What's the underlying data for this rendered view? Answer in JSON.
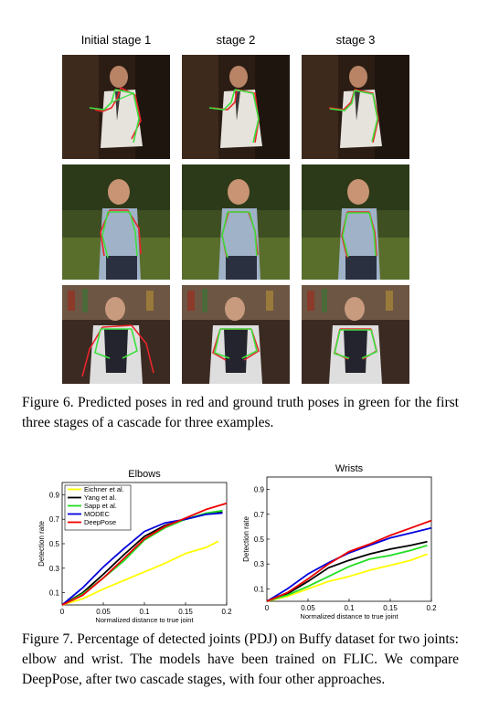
{
  "figure6": {
    "column_titles": [
      "Initial stage 1",
      "stage 2",
      "stage 3"
    ],
    "caption": "Figure 6. Predicted poses in red and ground truth poses in green for the first three stages of a cascade for three examples."
  },
  "figure7": {
    "caption": "Figure 7.   Percentage of detected joints (PDJ) on Buffy dataset for two joints: elbow and wrist. The models have been trained on FLIC. We compare DeepPose, after two cascade stages, with four other approaches."
  },
  "colors": {
    "prediction": "#e8262a",
    "ground_truth": "#3ee03e"
  },
  "chart_data": [
    {
      "type": "line",
      "title": "Elbows",
      "xlabel": "Normalized distance to true joint",
      "ylabel": "Detection rate",
      "xlim": [
        0,
        0.2
      ],
      "ylim": [
        0,
        1
      ],
      "xticks": [
        "0",
        "0.05",
        "0.1",
        "0.15",
        "0.2"
      ],
      "yticks": [
        "0.1",
        "0.3",
        "0.5",
        "0.7",
        "0.9"
      ],
      "grid": false,
      "legend_position": "top-left",
      "series": [
        {
          "name": "Eichner et al.",
          "color": "#ffff00",
          "x": [
            0,
            0.025,
            0.05,
            0.075,
            0.1,
            0.125,
            0.15,
            0.175,
            0.19
          ],
          "y": [
            0,
            0.05,
            0.13,
            0.2,
            0.27,
            0.34,
            0.42,
            0.47,
            0.52
          ]
        },
        {
          "name": "Yang et al.",
          "color": "#000000",
          "x": [
            0,
            0.025,
            0.05,
            0.075,
            0.1,
            0.125,
            0.15,
            0.175,
            0.195
          ],
          "y": [
            0,
            0.1,
            0.25,
            0.41,
            0.56,
            0.65,
            0.7,
            0.74,
            0.76
          ]
        },
        {
          "name": "Sapp et al.",
          "color": "#22dd22",
          "x": [
            0,
            0.025,
            0.05,
            0.075,
            0.1,
            0.125,
            0.15,
            0.175,
            0.195
          ],
          "y": [
            0,
            0.09,
            0.22,
            0.36,
            0.53,
            0.63,
            0.7,
            0.75,
            0.77
          ]
        },
        {
          "name": "MODEC",
          "color": "#0000dd",
          "x": [
            0,
            0.025,
            0.05,
            0.075,
            0.1,
            0.125,
            0.15,
            0.175,
            0.195
          ],
          "y": [
            0,
            0.14,
            0.31,
            0.46,
            0.6,
            0.67,
            0.7,
            0.74,
            0.75
          ]
        },
        {
          "name": "DeepPose",
          "color": "#ee0000",
          "x": [
            0,
            0.025,
            0.05,
            0.075,
            0.1,
            0.125,
            0.15,
            0.175,
            0.2
          ],
          "y": [
            0,
            0.08,
            0.22,
            0.38,
            0.54,
            0.64,
            0.71,
            0.78,
            0.83
          ]
        }
      ]
    },
    {
      "type": "line",
      "title": "Wrists",
      "xlabel": "Normalized distance to true joint",
      "ylabel": "Detection rate",
      "xlim": [
        0,
        0.2
      ],
      "ylim": [
        0,
        1
      ],
      "xticks": [
        "0",
        "0.05",
        "0.1",
        "0.15",
        "0.2"
      ],
      "yticks": [
        "0.1",
        "0.3",
        "0.5",
        "0.7",
        "0.9"
      ],
      "grid": false,
      "series": [
        {
          "name": "Eichner et al.",
          "color": "#ffff00",
          "x": [
            0,
            0.025,
            0.05,
            0.075,
            0.1,
            0.125,
            0.15,
            0.175,
            0.195
          ],
          "y": [
            0,
            0.04,
            0.1,
            0.16,
            0.2,
            0.25,
            0.29,
            0.33,
            0.38
          ]
        },
        {
          "name": "Yang et al.",
          "color": "#000000",
          "x": [
            0,
            0.025,
            0.05,
            0.075,
            0.1,
            0.125,
            0.15,
            0.175,
            0.195
          ],
          "y": [
            0,
            0.06,
            0.16,
            0.27,
            0.33,
            0.38,
            0.42,
            0.45,
            0.48
          ]
        },
        {
          "name": "Sapp et al.",
          "color": "#22dd22",
          "x": [
            0,
            0.025,
            0.05,
            0.075,
            0.1,
            0.125,
            0.15,
            0.175,
            0.195
          ],
          "y": [
            0,
            0.05,
            0.12,
            0.2,
            0.28,
            0.34,
            0.37,
            0.41,
            0.45
          ]
        },
        {
          "name": "MODEC",
          "color": "#0000dd",
          "x": [
            0,
            0.025,
            0.05,
            0.075,
            0.1,
            0.125,
            0.15,
            0.175,
            0.2
          ],
          "y": [
            0,
            0.1,
            0.22,
            0.31,
            0.39,
            0.45,
            0.51,
            0.55,
            0.59
          ]
        },
        {
          "name": "DeepPose",
          "color": "#ee0000",
          "x": [
            0,
            0.025,
            0.05,
            0.075,
            0.1,
            0.125,
            0.15,
            0.175,
            0.2
          ],
          "y": [
            0,
            0.07,
            0.18,
            0.3,
            0.4,
            0.46,
            0.53,
            0.59,
            0.65
          ]
        }
      ]
    }
  ]
}
